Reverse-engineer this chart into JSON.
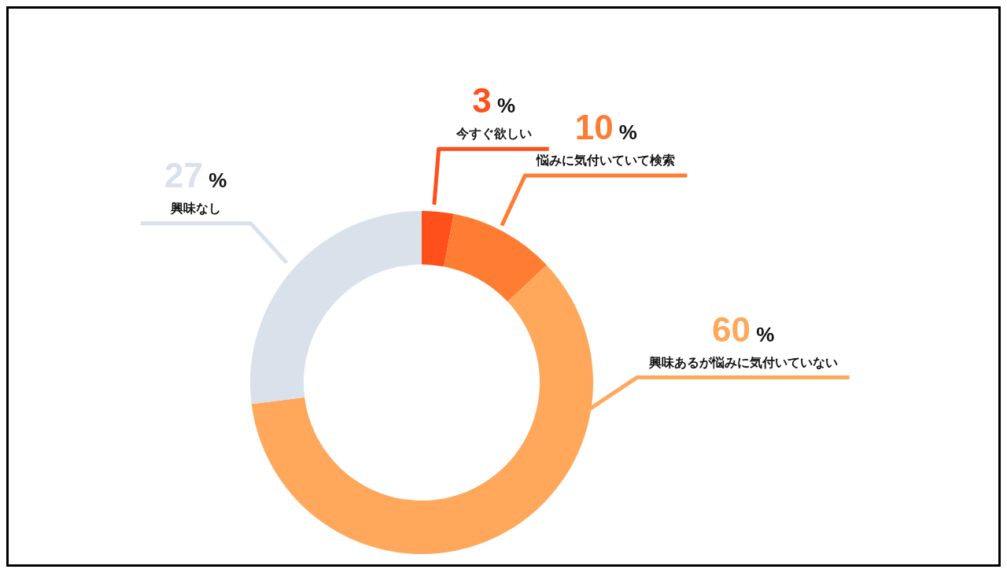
{
  "chart_data": {
    "type": "donut",
    "categories": [
      "今すぐ欲しい",
      "悩みに気付いていて検索",
      "興味あるが悩みに気付いていない",
      "興味なし"
    ],
    "values": [
      3,
      10,
      60,
      27
    ],
    "colors": [
      "#ff4f1a",
      "#ff7c33",
      "#ffa85c",
      "#d9e2ea"
    ],
    "value_labels": [
      "3 %",
      "10 %",
      "60 %",
      "27 %"
    ]
  }
}
